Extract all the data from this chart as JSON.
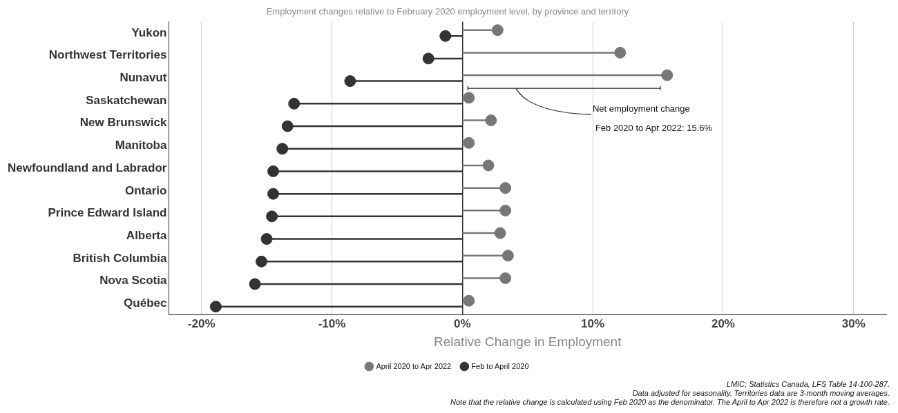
{
  "chart_data": {
    "type": "lollipop",
    "orientation": "horizontal",
    "title": "Employment changes relative to February 2020 employment level, by province and territory",
    "xlabel": "Relative Change in Employment",
    "categories": [
      "Yukon",
      "Northwest Territories",
      "Nunavut",
      "Saskatchewan",
      "New Brunswick",
      "Manitoba",
      "Newfoundland and Labrador",
      "Ontario",
      "Prince Edward Island",
      "Alberta",
      "British Columbia",
      "Nova Scotia",
      "Québec"
    ],
    "series": [
      {
        "name": "April 2020 to Apr 2022",
        "color": "#777777",
        "values": [
          2.7,
          12.1,
          15.7,
          0.5,
          2.2,
          0.5,
          2.0,
          3.3,
          3.3,
          2.9,
          3.5,
          3.3,
          0.5
        ]
      },
      {
        "name": "Feb to April 2020",
        "color": "#333333",
        "values": [
          -1.3,
          -2.6,
          -8.6,
          -12.9,
          -13.4,
          -13.8,
          -14.5,
          -14.5,
          -14.6,
          -15.0,
          -15.4,
          -15.9,
          -18.9
        ]
      }
    ],
    "xlim": [
      -22.5,
      32.5
    ],
    "xticks": [
      {
        "value": -20,
        "label": "-20%"
      },
      {
        "value": -10,
        "label": "-10%"
      },
      {
        "value": 0,
        "label": "0%"
      },
      {
        "value": 10,
        "label": "10%"
      },
      {
        "value": 20,
        "label": "20%"
      },
      {
        "value": 30,
        "label": "30%"
      }
    ],
    "grid": "x",
    "legend": "bottom",
    "marker": "circle",
    "annotations": [
      {
        "text": "Net employment change\nFeb 2020 to Apr 2022: 15.6%",
        "x": 15.6,
        "y": "Nunavut"
      },
      "LMIC; Statistics Canada, LFS Table 14-100-287.",
      "Data adjusted for seasonality. Territories data are 3-month moving averages.",
      "Note that the relative change is calculated using Feb 2020 as the denominator. The April to Apr 2022 is therefore not a growth rate."
    ]
  }
}
